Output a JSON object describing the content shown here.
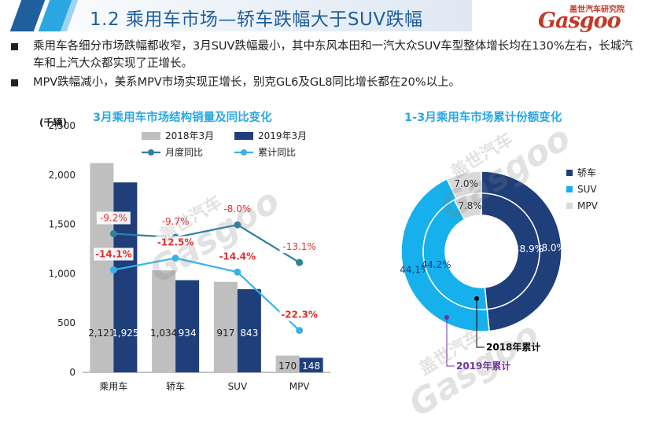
{
  "header": {
    "title": "1.2 乘用车市场—轿车跌幅大于SUV跌幅",
    "logo_sub": "盖世汽车研究院",
    "logo_main": "Gasgoo"
  },
  "bullets": [
    "乘用车各细分市场跌幅都收窄，3月SUV跌幅最小，其中东风本田和一汽大众SUV车型整体增长均在130%左右，长城汽车和上汽大众都实现了正增长。",
    "MPV跌幅减小，美系MPV市场实现正增长，别克GL6及GL8同比增长都在20%以上。"
  ],
  "watermark": {
    "text1": "盖世汽车",
    "text2": "Gasgoo"
  },
  "colors": {
    "grey_bar": "#bfbfbf",
    "navy_bar": "#1f3f7a",
    "monthly_line": "#2f7fa3",
    "cumulative_line": "#35b3e8",
    "red_label": "#e0302e",
    "title_blue": "#2aa7e3",
    "purple": "#7030a0"
  },
  "chart_data": [
    {
      "type": "bar",
      "title": "3月乘用车市场结构销量及同比变化",
      "unit": "(千辆)",
      "categories": [
        "乘用车",
        "轿车",
        "SUV",
        "MPV"
      ],
      "ylim": [
        0,
        2500
      ],
      "yticks": [
        "0",
        "500",
        "1,000",
        "1,500",
        "2,000",
        "2,500"
      ],
      "series": [
        {
          "name": "2018年3月",
          "values": [
            2121,
            1034,
            917,
            170
          ],
          "labels": [
            "2,121",
            "1,034",
            "917",
            "170"
          ]
        },
        {
          "name": "2019年3月",
          "values": [
            1925,
            934,
            843,
            148
          ],
          "labels": [
            "1,925",
            "934",
            "843",
            "148"
          ]
        }
      ],
      "lines": [
        {
          "name": "月度同比",
          "values": [
            -9.2,
            -9.7,
            -8.0,
            -13.1
          ],
          "labels": [
            "-9.2%",
            "-9.7%",
            "-8.0%",
            "-13.1%"
          ]
        },
        {
          "name": "累计同比",
          "values": [
            -14.1,
            -12.5,
            -14.4,
            -22.3
          ],
          "labels": [
            "-14.1%",
            "-12.5%",
            "-14.4%",
            "-22.3%"
          ]
        }
      ]
    },
    {
      "type": "pie",
      "title": "1-3月乘用车市场累计份额变化",
      "categories": [
        "轿车",
        "SUV",
        "MPV"
      ],
      "series": [
        {
          "name": "2018年累计",
          "values": [
            48.9,
            44.2,
            7.8
          ],
          "labels": [
            "48.9%",
            "44.2%",
            "7.8%"
          ]
        },
        {
          "name": "2019年累计",
          "values": [
            48.0,
            44.1,
            7.0
          ],
          "labels": [
            "48.0%",
            "44.1%",
            "7.0%"
          ]
        }
      ],
      "colors": [
        "#1f3f7a",
        "#16b0ec",
        "#d9d9d9"
      ]
    }
  ]
}
